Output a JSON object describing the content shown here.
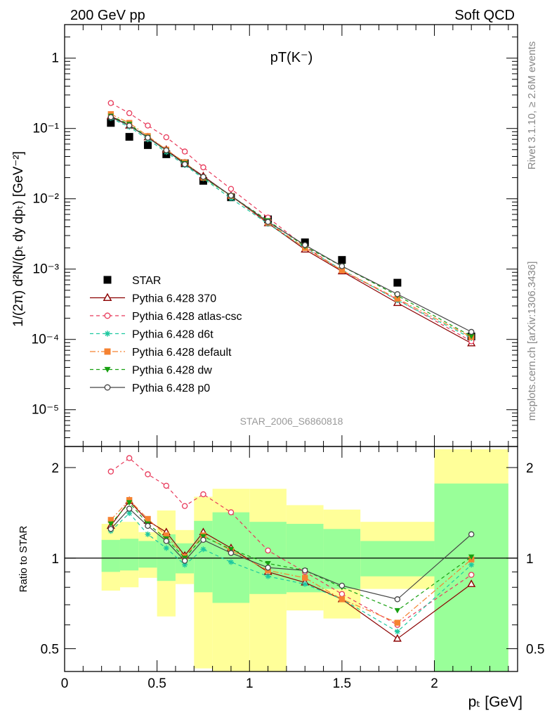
{
  "header": {
    "left": "200 GeV pp",
    "right": "Soft QCD"
  },
  "side_labels": {
    "rivet": "Rivet 3.1.10, ≥ 2.6M events",
    "mcplots": "mcplots.cern.ch [arXiv:1306.3436]"
  },
  "analysis_id": "STAR_2006_S6860818",
  "chart_data": [
    {
      "type": "scatter",
      "panel": "main",
      "title": "pT(K⁻)",
      "ylabel": "1/(2π) d²N/(pₜ dy dpₜ) [GeV⁻²]",
      "yscale": "log",
      "xlim": [
        0,
        2.45
      ],
      "ylim": [
        3e-06,
        3
      ],
      "x_ticklabels": [],
      "y_ticklabels": [
        "10⁻⁵",
        "10⁻⁴",
        "10⁻³",
        "10⁻²",
        "10⁻¹",
        "1"
      ],
      "legend_position": "lower-left",
      "x": [
        0.25,
        0.35,
        0.45,
        0.55,
        0.65,
        0.75,
        0.9,
        1.1,
        1.3,
        1.5,
        1.8,
        2.2
      ],
      "series": [
        {
          "name": "STAR",
          "color": "#000000",
          "marker": "square-filled",
          "line": "none",
          "values": [
            0.12,
            0.076,
            0.058,
            0.043,
            0.032,
            0.018,
            0.0105,
            0.0051,
            0.0024,
            0.00135,
            0.00064,
            0.00011
          ]
        },
        {
          "name": "Pythia 6.428 370",
          "color": "#8b0000",
          "marker": "triangle-open",
          "line": "solid",
          "values": [
            0.15,
            0.11,
            0.075,
            0.05,
            0.032,
            0.021,
            0.011,
            0.0045,
            0.0019,
            0.00093,
            0.00033,
            8.8e-05
          ]
        },
        {
          "name": "Pythia 6.428 atlas-csc",
          "color": "#e8395a",
          "marker": "circle-open",
          "line": "dashed",
          "values": [
            0.23,
            0.165,
            0.11,
            0.075,
            0.047,
            0.028,
            0.0138,
            0.0054,
            0.0021,
            0.00095,
            0.00037,
            9.4e-05
          ]
        },
        {
          "name": "Pythia 6.428 d6t",
          "color": "#1ec8a0",
          "marker": "star",
          "line": "dashed",
          "values": [
            0.14,
            0.105,
            0.07,
            0.046,
            0.03,
            0.0195,
            0.0101,
            0.0044,
            0.002,
            0.00098,
            0.00036,
            0.000104
          ]
        },
        {
          "name": "Pythia 6.428 default",
          "color": "#f58231",
          "marker": "square-filled",
          "line": "dashdot",
          "values": [
            0.16,
            0.12,
            0.078,
            0.05,
            0.033,
            0.02,
            0.011,
            0.0046,
            0.002,
            0.00096,
            0.00038,
            0.000108
          ]
        },
        {
          "name": "Pythia 6.428 dw",
          "color": "#17a010",
          "marker": "triangle-down-filled",
          "line": "dashed",
          "values": [
            0.15,
            0.115,
            0.075,
            0.048,
            0.032,
            0.02,
            0.011,
            0.0049,
            0.0021,
            0.0011,
            0.00042,
            0.000111
          ]
        },
        {
          "name": "Pythia 6.428 p0",
          "color": "#444444",
          "marker": "circle-open",
          "line": "solid",
          "values": [
            0.145,
            0.11,
            0.074,
            0.049,
            0.031,
            0.0205,
            0.0111,
            0.0047,
            0.0022,
            0.0011,
            0.00044,
            0.000128
          ]
        }
      ]
    },
    {
      "type": "scatter",
      "panel": "ratio",
      "ylabel": "Ratio to STAR",
      "xlabel": "pₜ [GeV]",
      "yscale": "log",
      "xlim": [
        0,
        2.45
      ],
      "ylim": [
        0.42,
        2.35
      ],
      "x_ticklabels": [
        "0",
        "0.5",
        "1",
        "1.5",
        "2"
      ],
      "y_ticklabels": [
        "0.5",
        "1",
        "2"
      ],
      "reference_line": 1,
      "uncertainty_bands": [
        {
          "x_low": 0.2,
          "x_high": 0.3,
          "inner": [
            0.9,
            1.15
          ],
          "outer": [
            0.78,
            1.3
          ]
        },
        {
          "x_low": 0.3,
          "x_high": 0.4,
          "inner": [
            0.91,
            1.16
          ],
          "outer": [
            0.8,
            1.32
          ]
        },
        {
          "x_low": 0.4,
          "x_high": 0.5,
          "inner": [
            0.93,
            1.14
          ],
          "outer": [
            0.86,
            1.22
          ]
        },
        {
          "x_low": 0.5,
          "x_high": 0.6,
          "inner": [
            0.84,
            1.2
          ],
          "outer": [
            0.64,
            1.44
          ]
        },
        {
          "x_low": 0.6,
          "x_high": 0.7,
          "inner": [
            0.89,
            1.12
          ],
          "outer": [
            0.82,
            1.24
          ]
        },
        {
          "x_low": 0.7,
          "x_high": 0.8,
          "inner": [
            0.77,
            1.33
          ],
          "outer": [
            0.43,
            1.6
          ]
        },
        {
          "x_low": 0.8,
          "x_high": 1.0,
          "inner": [
            0.71,
            1.42
          ],
          "outer": [
            0.35,
            1.7
          ]
        },
        {
          "x_low": 1.0,
          "x_high": 1.2,
          "inner": [
            0.76,
            1.32
          ],
          "outer": [
            0.35,
            1.7
          ]
        },
        {
          "x_low": 1.2,
          "x_high": 1.4,
          "inner": [
            0.77,
            1.3
          ],
          "outer": [
            0.67,
            1.5
          ]
        },
        {
          "x_low": 1.4,
          "x_high": 1.6,
          "inner": [
            0.79,
            1.25
          ],
          "outer": [
            0.63,
            1.45
          ]
        },
        {
          "x_low": 1.6,
          "x_high": 2.0,
          "inner": [
            0.87,
            1.14
          ],
          "outer": [
            0.79,
            1.32
          ]
        },
        {
          "x_low": 2.0,
          "x_high": 2.4,
          "inner": [
            0.35,
            1.77
          ],
          "outer": [
            0.35,
            2.3
          ]
        }
      ],
      "x": [
        0.25,
        0.35,
        0.45,
        0.55,
        0.65,
        0.75,
        0.9,
        1.1,
        1.3,
        1.5,
        1.8,
        2.2
      ],
      "series": [
        {
          "name": "Pythia 6.428 370",
          "color": "#8b0000",
          "marker": "triangle-open",
          "line": "solid",
          "values": [
            1.28,
            1.55,
            1.33,
            1.22,
            1.02,
            1.22,
            1.08,
            0.9,
            0.83,
            0.73,
            0.54,
            0.82
          ]
        },
        {
          "name": "Pythia 6.428 atlas-csc",
          "color": "#e8395a",
          "marker": "circle-open",
          "line": "dashed",
          "values": [
            1.94,
            2.15,
            1.9,
            1.74,
            1.49,
            1.63,
            1.42,
            1.06,
            0.9,
            0.76,
            0.6,
            0.88
          ]
        },
        {
          "name": "Pythia 6.428 d6t",
          "color": "#1ec8a0",
          "marker": "star",
          "line": "dashed",
          "values": [
            1.23,
            1.41,
            1.2,
            1.08,
            0.95,
            1.07,
            0.97,
            0.87,
            0.82,
            0.73,
            0.57,
            0.95
          ]
        },
        {
          "name": "Pythia 6.428 default",
          "color": "#f58231",
          "marker": "square-filled",
          "line": "dashdot",
          "values": [
            1.34,
            1.56,
            1.35,
            1.19,
            1.01,
            1.19,
            1.06,
            0.91,
            0.86,
            0.73,
            0.61,
            0.99
          ]
        },
        {
          "name": "Pythia 6.428 dw",
          "color": "#17a010",
          "marker": "triangle-down-filled",
          "line": "dashed",
          "values": [
            1.3,
            1.53,
            1.3,
            1.16,
            1.0,
            1.18,
            1.07,
            0.96,
            0.91,
            0.8,
            0.67,
            1.01
          ]
        },
        {
          "name": "Pythia 6.428 p0",
          "color": "#444444",
          "marker": "circle-open",
          "line": "solid",
          "values": [
            1.25,
            1.46,
            1.28,
            1.14,
            0.98,
            1.15,
            1.04,
            0.93,
            0.91,
            0.81,
            0.73,
            1.2
          ]
        }
      ]
    }
  ]
}
